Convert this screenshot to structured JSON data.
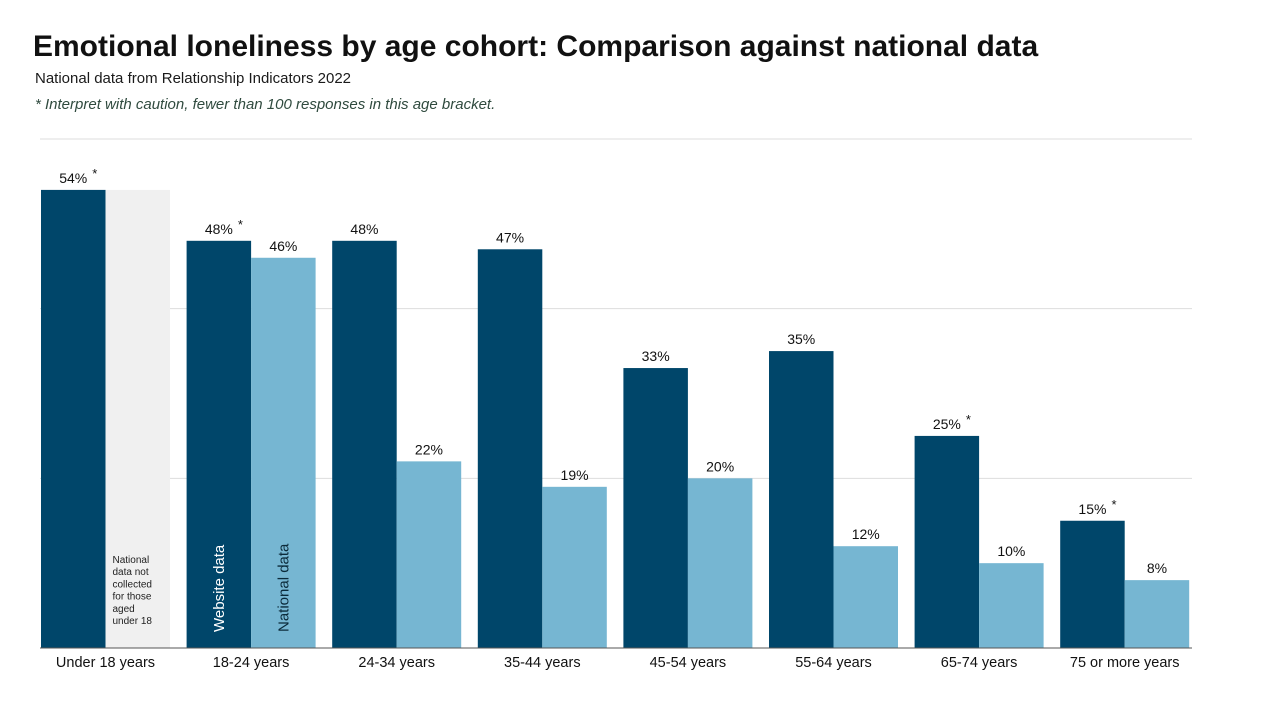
{
  "title": "Emotional loneliness by age cohort: Comparison against national data",
  "subtitle": "National data from Relationship Indicators 2022",
  "note": "* Interpret with caution, fewer than 100 responses in this age bracket.",
  "colors": {
    "website": "#00466a",
    "national": "#76b6d2",
    "placeholder": "#f0f0f0",
    "grid": "#dddddd",
    "axis": "#555555",
    "text": "#111111"
  },
  "chart_data": {
    "type": "bar",
    "categories": [
      "Under 18 years",
      "18-24 years",
      "24-34 years",
      "35-44 years",
      "45-54 years",
      "55-64 years",
      "65-74 years",
      "75 or more years"
    ],
    "series": [
      {
        "name": "Website data",
        "values": [
          54,
          48,
          48,
          47,
          33,
          35,
          25,
          15
        ],
        "labels": [
          "54%",
          "48%",
          "48%",
          "47%",
          "33%",
          "35%",
          "25%",
          "15%"
        ],
        "asterisk": [
          true,
          true,
          false,
          false,
          false,
          false,
          true,
          true
        ]
      },
      {
        "name": "National data",
        "values": [
          null,
          46,
          22,
          19,
          20,
          12,
          10,
          8
        ],
        "labels": [
          "",
          "46%",
          "22%",
          "19%",
          "20%",
          "12%",
          "10%",
          "8%"
        ],
        "asterisk": [
          false,
          false,
          false,
          false,
          false,
          false,
          false,
          false
        ]
      }
    ],
    "missing_note_lines": [
      "National",
      "data not",
      "collected",
      "for those",
      "aged",
      "under 18"
    ],
    "asterisk_symbol": "*",
    "ylim": [
      0,
      60
    ],
    "gridlines": [
      20,
      40,
      60
    ],
    "legend_placement": "inside-bars"
  }
}
